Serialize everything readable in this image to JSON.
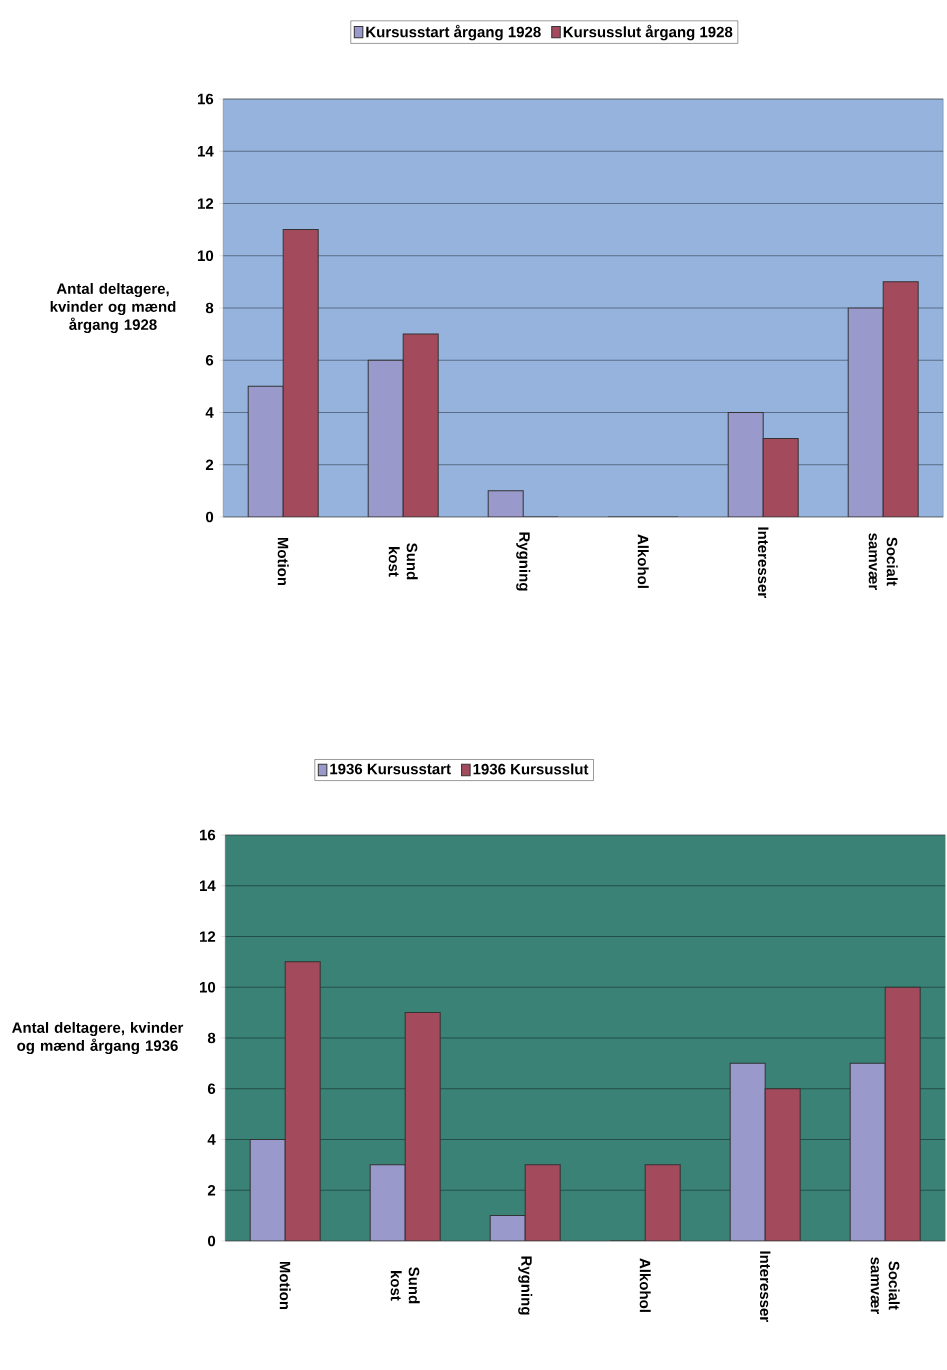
{
  "chart_data": [
    {
      "type": "bar",
      "ylabel": "Antal deltagere, kvinder og mænd årgang 1928",
      "categories": [
        "Motion",
        "Sund kost",
        "Rygning",
        "Alkohol",
        "Interesser",
        "Socialt samvær"
      ],
      "ylim": [
        0,
        16
      ],
      "yticks": [
        0,
        2,
        4,
        6,
        8,
        10,
        12,
        14,
        16
      ],
      "grid": "y",
      "legend": "top",
      "series": [
        {
          "name": "Kursusstart årgang 1928",
          "color": "#9999cc",
          "values": [
            5,
            6,
            1,
            0,
            4,
            8
          ]
        },
        {
          "name": "Kursusslut årgang 1928",
          "color": "#a34a5c",
          "values": [
            11,
            7,
            0,
            0,
            3,
            9
          ]
        }
      ]
    },
    {
      "type": "bar",
      "ylabel": "Antal deltagere, kvinder og mænd årgang 1936",
      "categories": [
        "Motion",
        "Sund kost",
        "Rygning",
        "Alkohol",
        "Interesser",
        "Socialt samvær"
      ],
      "ylim": [
        0,
        16
      ],
      "yticks": [
        0,
        2,
        4,
        6,
        8,
        10,
        12,
        14,
        16
      ],
      "grid": "y",
      "legend": "top",
      "series": [
        {
          "name": "1936 Kursusstart",
          "color": "#9999cc",
          "values": [
            4,
            3,
            1,
            0,
            7,
            7
          ]
        },
        {
          "name": "1936 Kursusslut",
          "color": "#a34a5c",
          "values": [
            11,
            9,
            3,
            3,
            6,
            10
          ]
        }
      ]
    }
  ]
}
